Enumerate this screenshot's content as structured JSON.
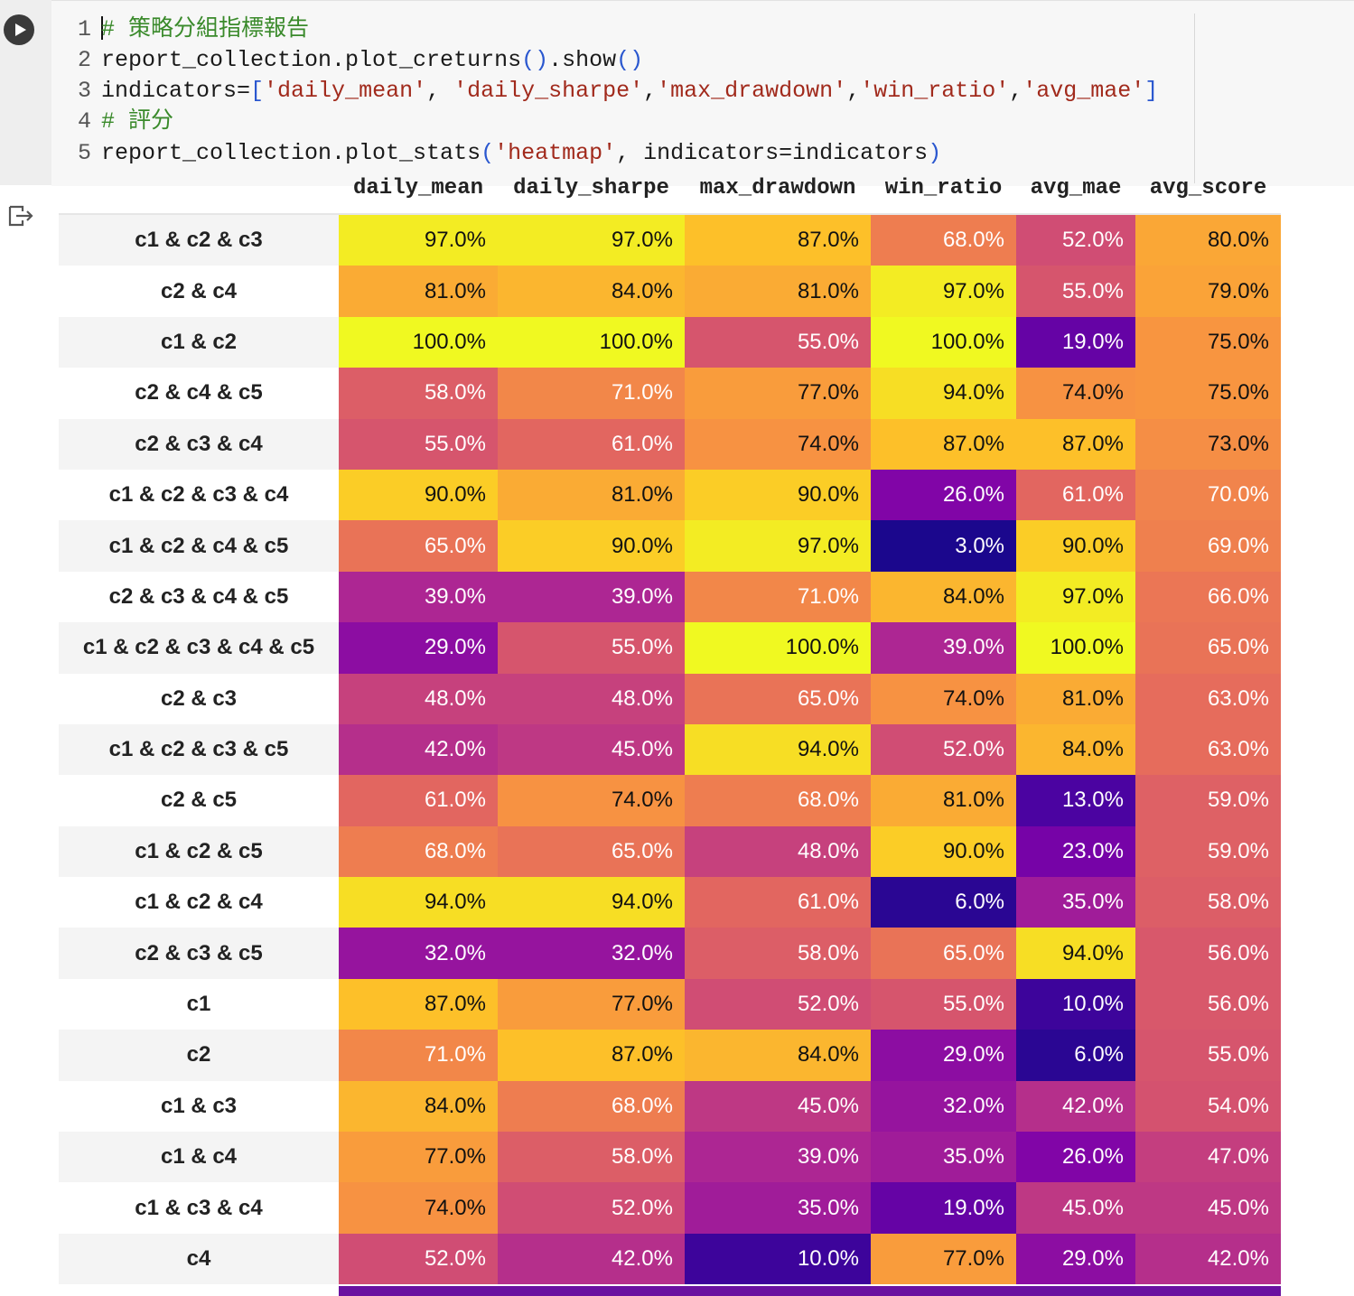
{
  "code_cell": {
    "lines": [
      {
        "no": "1",
        "parts": [
          {
            "t": "# 策略分組指標報告",
            "c": "cmt"
          }
        ]
      },
      {
        "no": "2",
        "parts": [
          {
            "t": "report_collection.plot_creturns",
            "c": ""
          },
          {
            "t": "()",
            "c": "br"
          },
          {
            "t": ".show",
            "c": ""
          },
          {
            "t": "()",
            "c": "br"
          }
        ]
      },
      {
        "no": "3",
        "parts": [
          {
            "t": "indicators=",
            "c": ""
          },
          {
            "t": "[",
            "c": "br"
          },
          {
            "t": "'daily_mean'",
            "c": "str"
          },
          {
            "t": ", ",
            "c": ""
          },
          {
            "t": "'daily_sharpe'",
            "c": "str"
          },
          {
            "t": ",",
            "c": ""
          },
          {
            "t": "'max_drawdown'",
            "c": "str"
          },
          {
            "t": ",",
            "c": ""
          },
          {
            "t": "'win_ratio'",
            "c": "str"
          },
          {
            "t": ",",
            "c": ""
          },
          {
            "t": "'avg_mae'",
            "c": "str"
          },
          {
            "t": "]",
            "c": "br"
          }
        ]
      },
      {
        "no": "4",
        "parts": [
          {
            "t": "# 評分",
            "c": "cmt"
          }
        ]
      },
      {
        "no": "5",
        "parts": [
          {
            "t": "report_collection.plot_stats",
            "c": ""
          },
          {
            "t": "(",
            "c": "br"
          },
          {
            "t": "'heatmap'",
            "c": "str"
          },
          {
            "t": ", indicators=indicators",
            "c": ""
          },
          {
            "t": ")",
            "c": "br"
          }
        ]
      }
    ]
  },
  "icons": {
    "run": "play-circle-icon",
    "output": "output-redirect-icon"
  },
  "colors": {
    "comment": "#3a8a2b",
    "string": "#a12a1c",
    "bracket": "#2a57cf",
    "colormap": "plasma"
  },
  "chart_data": {
    "type": "heatmap",
    "columns": [
      "daily_mean",
      "daily_sharpe",
      "max_drawdown",
      "win_ratio",
      "avg_mae",
      "avg_score"
    ],
    "rows": [
      {
        "label": "c1 & c2 & c3",
        "values": [
          97.0,
          97.0,
          87.0,
          68.0,
          52.0,
          80.0
        ]
      },
      {
        "label": "c2 & c4",
        "values": [
          81.0,
          84.0,
          81.0,
          97.0,
          55.0,
          79.0
        ]
      },
      {
        "label": "c1 & c2",
        "values": [
          100.0,
          100.0,
          55.0,
          100.0,
          19.0,
          75.0
        ]
      },
      {
        "label": "c2 & c4 & c5",
        "values": [
          58.0,
          71.0,
          77.0,
          94.0,
          74.0,
          75.0
        ]
      },
      {
        "label": "c2 & c3 & c4",
        "values": [
          55.0,
          61.0,
          74.0,
          87.0,
          87.0,
          73.0
        ]
      },
      {
        "label": "c1 & c2 & c3 & c4",
        "values": [
          90.0,
          81.0,
          90.0,
          26.0,
          61.0,
          70.0
        ]
      },
      {
        "label": "c1 & c2 & c4 & c5",
        "values": [
          65.0,
          90.0,
          97.0,
          3.0,
          90.0,
          69.0
        ]
      },
      {
        "label": "c2 & c3 & c4 & c5",
        "values": [
          39.0,
          39.0,
          71.0,
          84.0,
          97.0,
          66.0
        ]
      },
      {
        "label": "c1 & c2 & c3 & c4 & c5",
        "values": [
          29.0,
          55.0,
          100.0,
          39.0,
          100.0,
          65.0
        ]
      },
      {
        "label": "c2 & c3",
        "values": [
          48.0,
          48.0,
          65.0,
          74.0,
          81.0,
          63.0
        ]
      },
      {
        "label": "c1 & c2 & c3 & c5",
        "values": [
          42.0,
          45.0,
          94.0,
          52.0,
          84.0,
          63.0
        ]
      },
      {
        "label": "c2 & c5",
        "values": [
          61.0,
          74.0,
          68.0,
          81.0,
          13.0,
          59.0
        ]
      },
      {
        "label": "c1 & c2 & c5",
        "values": [
          68.0,
          65.0,
          48.0,
          90.0,
          23.0,
          59.0
        ]
      },
      {
        "label": "c1 & c2 & c4",
        "values": [
          94.0,
          94.0,
          61.0,
          6.0,
          35.0,
          58.0
        ]
      },
      {
        "label": "c2 & c3 & c5",
        "values": [
          32.0,
          32.0,
          58.0,
          65.0,
          94.0,
          56.0
        ]
      },
      {
        "label": "c1",
        "values": [
          87.0,
          77.0,
          52.0,
          55.0,
          10.0,
          56.0
        ]
      },
      {
        "label": "c2",
        "values": [
          71.0,
          87.0,
          84.0,
          29.0,
          6.0,
          55.0
        ]
      },
      {
        "label": "c1 & c3",
        "values": [
          84.0,
          68.0,
          45.0,
          32.0,
          42.0,
          54.0
        ]
      },
      {
        "label": "c1 & c4",
        "values": [
          77.0,
          58.0,
          39.0,
          35.0,
          26.0,
          47.0
        ]
      },
      {
        "label": "c1 & c3 & c4",
        "values": [
          74.0,
          52.0,
          35.0,
          19.0,
          45.0,
          45.0
        ]
      },
      {
        "label": "c4",
        "values": [
          52.0,
          42.0,
          10.0,
          77.0,
          29.0,
          42.0
        ]
      }
    ],
    "value_format": "{v}%",
    "color_range": [
      0,
      100
    ]
  }
}
